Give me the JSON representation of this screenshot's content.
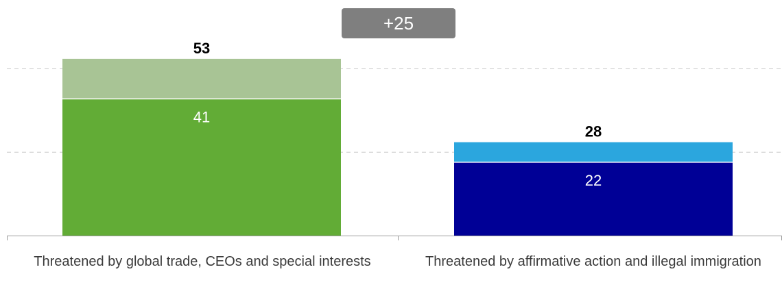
{
  "chart_data": {
    "type": "bar",
    "stacked": true,
    "categories": [
      "Threatened by global trade, CEOs and special interests",
      "Threatened by affirmative action and illegal immigration"
    ],
    "bars": [
      {
        "total": 53,
        "base": 41,
        "base_color": "#62ac36",
        "top_color": "#a8c495"
      },
      {
        "total": 28,
        "base": 22,
        "base_color": "#000096",
        "top_color": "#2ba6de"
      }
    ],
    "difference_label": "+25",
    "ylim": [
      0,
      60
    ],
    "gridlines": [
      25,
      50
    ],
    "grid": "dashed",
    "xlabel": "",
    "ylabel": ""
  }
}
